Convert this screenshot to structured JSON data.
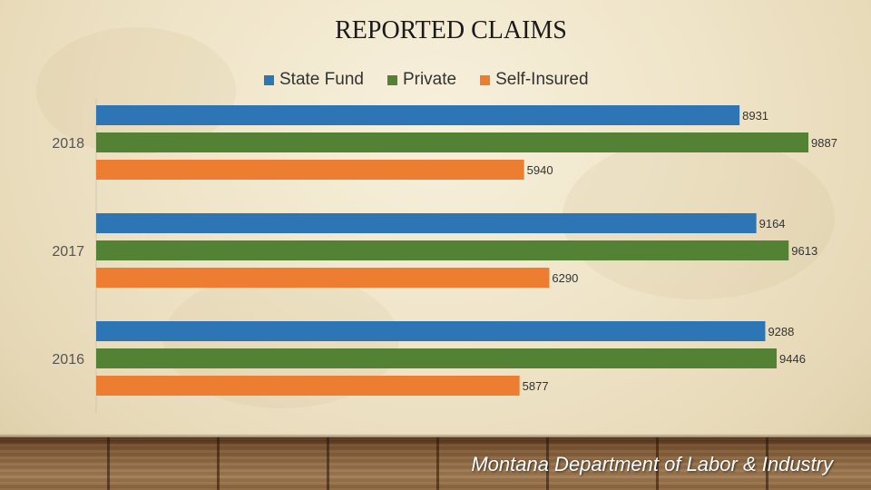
{
  "chart_data": {
    "type": "bar",
    "orientation": "horizontal",
    "title": "REPORTED CLAIMS",
    "categories": [
      "2018",
      "2017",
      "2016"
    ],
    "series": [
      {
        "name": "State Fund",
        "color": "#2e75b6",
        "values": [
          8931,
          9164,
          9288
        ]
      },
      {
        "name": "Private",
        "color": "#548235",
        "values": [
          9887,
          9613,
          9446
        ]
      },
      {
        "name": "Self-Insured",
        "color": "#ed7d31",
        "values": [
          5940,
          6290,
          5877
        ]
      }
    ],
    "xlim": [
      0,
      10000
    ],
    "grid": false,
    "legend_position": "top"
  },
  "footer": {
    "text": "Montana Department of Labor & Industry"
  }
}
